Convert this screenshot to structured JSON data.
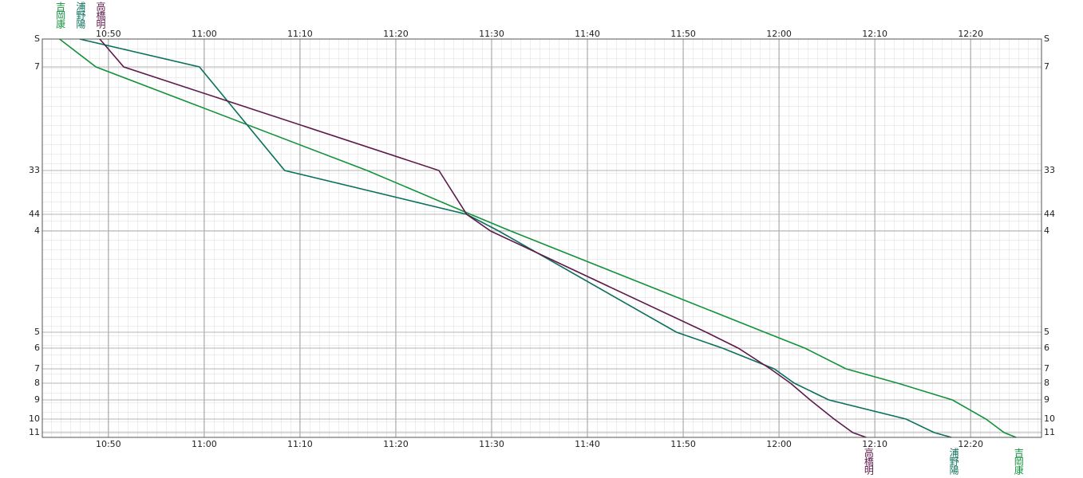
{
  "chart_data": {
    "type": "line",
    "xlim": [
      643.1,
      747.4
    ],
    "xticks": [
      {
        "value": 650,
        "label": "10:50"
      },
      {
        "value": 660,
        "label": "11:00"
      },
      {
        "value": 670,
        "label": "11:10"
      },
      {
        "value": 680,
        "label": "11:20"
      },
      {
        "value": 690,
        "label": "11:30"
      },
      {
        "value": 700,
        "label": "11:40"
      },
      {
        "value": 710,
        "label": "11:50"
      },
      {
        "value": 720,
        "label": "12:00"
      },
      {
        "value": 730,
        "label": "12:10"
      },
      {
        "value": 740,
        "label": "12:20"
      }
    ],
    "ylim": [
      0,
      100
    ],
    "yticks": [
      {
        "value": 0,
        "label": "S"
      },
      7,
      33,
      44,
      {
        "value": 48.2,
        "label": "4"
      },
      {
        "value": 73.6,
        "label": "5"
      },
      {
        "value": 77.6,
        "label": "6"
      },
      {
        "value": 82.8,
        "label": "7"
      },
      {
        "value": 86.4,
        "label": "8"
      },
      {
        "value": 90.6,
        "label": "9"
      },
      {
        "value": 95.4,
        "label": "10"
      },
      {
        "value": 98.8,
        "label": "11"
      }
    ],
    "ytick_labels_fix": null,
    "series": [
      {
        "name": "吉岡康",
        "color": "#11913a",
        "x": [
          644.9,
          648.7,
          677,
          687.8,
          692,
          718.5,
          722.7,
          727,
          732.4,
          738.1,
          741.6,
          743.5,
          744.75
        ],
        "values": [
          0,
          7,
          33,
          44,
          48.2,
          73.6,
          77.6,
          82.8,
          86.4,
          90.6,
          95.4,
          98.8,
          100
        ]
      },
      {
        "name": "浦野陽",
        "color": "#0b705c",
        "x": [
          647,
          659.5,
          668.4,
          687.4,
          690.75,
          709.3,
          714.1,
          719.5,
          721.6,
          725.2,
          733.25,
          736.2,
          738
        ],
        "values": [
          0,
          7,
          33,
          44,
          48.2,
          73.6,
          77.6,
          82.8,
          86.4,
          90.6,
          95.4,
          98.8,
          100
        ]
      },
      {
        "name": "高橋明",
        "color": "#5e1a4c",
        "x": [
          649.1,
          651.6,
          684.5,
          687.4,
          689.9,
          712.4,
          715.75,
          719.1,
          721.2,
          723.25,
          725.75,
          727.7,
          729.1
        ],
        "values": [
          0,
          7,
          33,
          44,
          48.2,
          73.6,
          77.6,
          82.8,
          86.4,
          90.6,
          95.4,
          98.8,
          100
        ]
      }
    ]
  }
}
